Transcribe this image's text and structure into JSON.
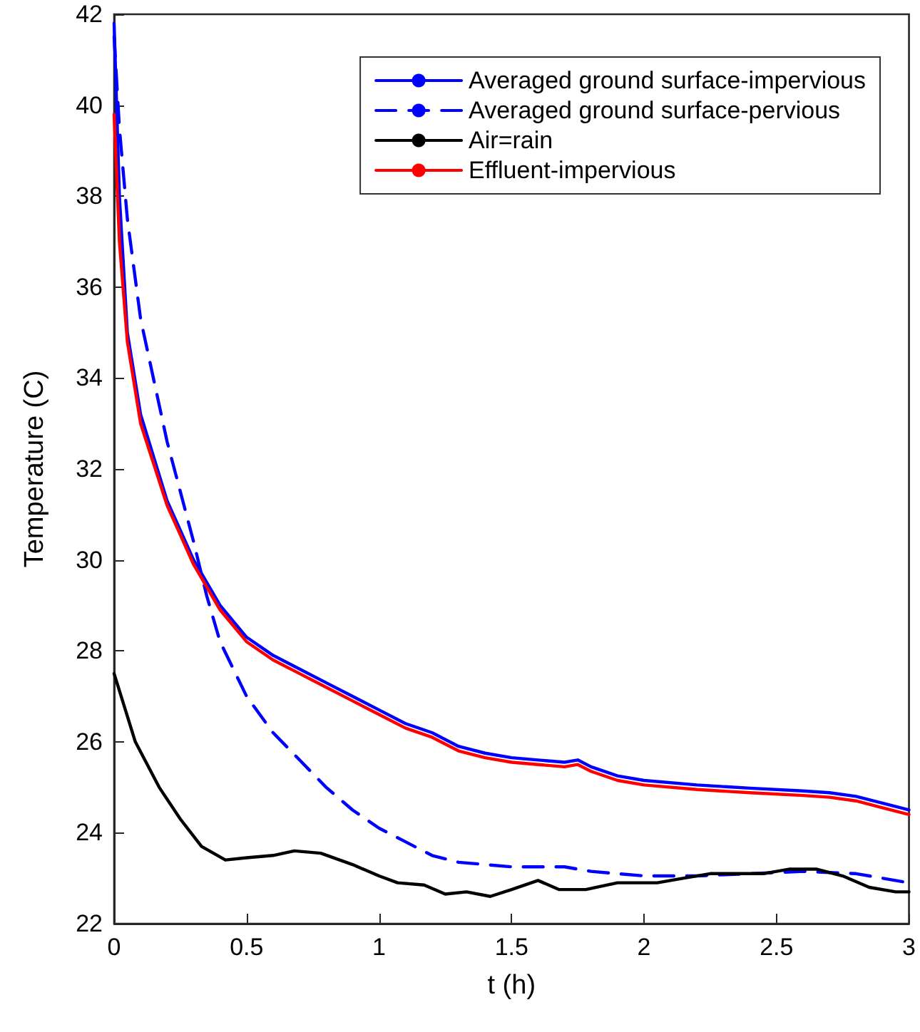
{
  "chart_data": {
    "type": "line",
    "xlabel": "t (h)",
    "ylabel": "Temperature (C)",
    "xlim": [
      0,
      3
    ],
    "xticks": [
      0,
      0.5,
      1,
      1.5,
      2,
      2.5,
      3
    ],
    "ylim": [
      22,
      42
    ],
    "yticks": [
      22,
      24,
      26,
      28,
      30,
      32,
      34,
      36,
      38,
      40,
      42
    ],
    "grid": false,
    "legend": "top right",
    "marker": "none",
    "series": [
      {
        "name": "Averaged ground surface-impervious",
        "color": "#0000ff",
        "line_style": "solid",
        "x": [
          0,
          0.02,
          0.05,
          0.1,
          0.2,
          0.3,
          0.4,
          0.5,
          0.6,
          0.7,
          0.8,
          0.9,
          1.0,
          1.1,
          1.2,
          1.3,
          1.4,
          1.5,
          1.6,
          1.7,
          1.75,
          1.8,
          1.9,
          2.0,
          2.2,
          2.4,
          2.6,
          2.7,
          2.8,
          2.9,
          3.0
        ],
        "values": [
          41.8,
          38,
          35,
          33.2,
          31.3,
          30.0,
          29.0,
          28.3,
          27.9,
          27.6,
          27.3,
          27.0,
          26.7,
          26.4,
          26.2,
          25.9,
          25.75,
          25.65,
          25.6,
          25.55,
          25.6,
          25.45,
          25.25,
          25.15,
          25.05,
          24.98,
          24.92,
          24.88,
          24.8,
          24.65,
          24.5
        ]
      },
      {
        "name": "Averaged ground surface-pervious",
        "color": "#0000ff",
        "line_style": "dashed",
        "x": [
          0,
          0.02,
          0.05,
          0.1,
          0.2,
          0.3,
          0.35,
          0.4,
          0.5,
          0.6,
          0.7,
          0.8,
          0.9,
          1.0,
          1.1,
          1.2,
          1.3,
          1.4,
          1.5,
          1.6,
          1.7,
          1.8,
          1.9,
          2.0,
          2.2,
          2.4,
          2.6,
          2.8,
          2.9,
          3.0
        ],
        "values": [
          41.5,
          39.5,
          37.5,
          35.3,
          32.6,
          30.4,
          29.2,
          28.2,
          27.0,
          26.2,
          25.6,
          25.0,
          24.5,
          24.1,
          23.8,
          23.5,
          23.35,
          23.3,
          23.25,
          23.25,
          23.25,
          23.15,
          23.1,
          23.05,
          23.05,
          23.1,
          23.15,
          23.1,
          23.0,
          22.9
        ]
      },
      {
        "name": "Air=rain",
        "color": "#000000",
        "line_style": "solid",
        "x": [
          0,
          0.08,
          0.17,
          0.25,
          0.33,
          0.42,
          0.5,
          0.6,
          0.68,
          0.78,
          0.9,
          1.0,
          1.07,
          1.17,
          1.25,
          1.33,
          1.42,
          1.5,
          1.6,
          1.68,
          1.78,
          1.9,
          2.05,
          2.15,
          2.25,
          2.45,
          2.55,
          2.65,
          2.75,
          2.85,
          2.95,
          3.0
        ],
        "values": [
          27.5,
          26.0,
          25.0,
          24.3,
          23.7,
          23.4,
          23.45,
          23.5,
          23.6,
          23.55,
          23.3,
          23.05,
          22.9,
          22.85,
          22.65,
          22.7,
          22.6,
          22.75,
          22.95,
          22.75,
          22.75,
          22.9,
          22.9,
          23.0,
          23.1,
          23.1,
          23.2,
          23.2,
          23.05,
          22.8,
          22.7,
          22.7
        ]
      },
      {
        "name": "Effluent-impervious",
        "color": "#ff0000",
        "line_style": "solid",
        "x": [
          0,
          0.02,
          0.05,
          0.1,
          0.2,
          0.3,
          0.4,
          0.5,
          0.6,
          0.7,
          0.8,
          0.9,
          1.0,
          1.1,
          1.2,
          1.3,
          1.4,
          1.5,
          1.6,
          1.7,
          1.75,
          1.8,
          1.9,
          2.0,
          2.2,
          2.4,
          2.6,
          2.7,
          2.8,
          2.9,
          3.0
        ],
        "values": [
          39.8,
          37,
          34.8,
          33.0,
          31.2,
          29.9,
          28.9,
          28.2,
          27.8,
          27.5,
          27.2,
          26.9,
          26.6,
          26.3,
          26.1,
          25.8,
          25.65,
          25.55,
          25.5,
          25.45,
          25.5,
          25.35,
          25.15,
          25.05,
          24.95,
          24.88,
          24.82,
          24.78,
          24.7,
          24.55,
          24.4
        ]
      }
    ]
  }
}
